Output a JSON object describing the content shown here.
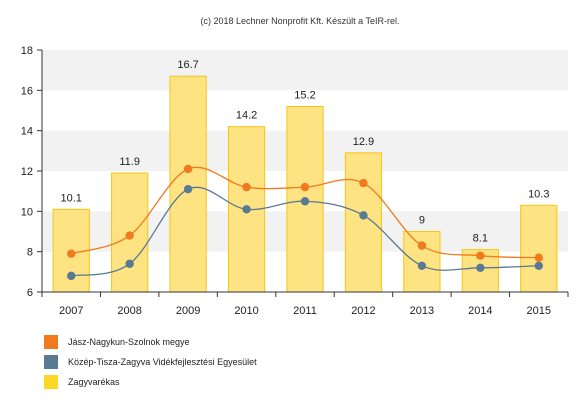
{
  "credit": "(c) 2018 Lechner Nonprofit Kft. Készült a TeIR-rel.",
  "chart_data": {
    "type": "bar",
    "categories": [
      "2007",
      "2008",
      "2009",
      "2010",
      "2011",
      "2012",
      "2013",
      "2014",
      "2015"
    ],
    "ylim": [
      6,
      18
    ],
    "yticks": [
      6,
      8,
      10,
      12,
      14,
      16,
      18
    ],
    "grid": "alternating horizontal bands",
    "legend_placement": "bottom-left",
    "series": [
      {
        "name": "Zagyvarékas",
        "type": "bar",
        "color": "#fde382",
        "border": "#f5c518",
        "values": [
          10.1,
          11.9,
          16.7,
          14.2,
          15.2,
          12.9,
          9,
          8.1,
          10.3
        ],
        "labels": [
          "10.1",
          "11.9",
          "16.7",
          "14.2",
          "15.2",
          "12.9",
          "9",
          "8.1",
          "10.3"
        ]
      },
      {
        "name": "Jász-Nagykun-Szolnok megye",
        "type": "line",
        "color": "#f07a1e",
        "values": [
          7.9,
          8.8,
          12.1,
          11.2,
          11.2,
          11.4,
          8.3,
          7.8,
          7.7
        ]
      },
      {
        "name": "Közép-Tisza-Zagyva Vidékfejlesztési Egyesület",
        "type": "line",
        "color": "#5a7a94",
        "values": [
          6.8,
          7.4,
          11.1,
          10.1,
          10.5,
          9.8,
          7.3,
          7.2,
          7.3
        ]
      }
    ]
  },
  "legend": [
    {
      "label": "Jász-Nagykun-Szolnok megye",
      "color": "#f07a1e"
    },
    {
      "label": "Közép-Tisza-Zagyva Vidékfejlesztési Egyesület",
      "color": "#5a7a94"
    },
    {
      "label": "Zagyvarékas",
      "color": "#fdd826"
    }
  ]
}
